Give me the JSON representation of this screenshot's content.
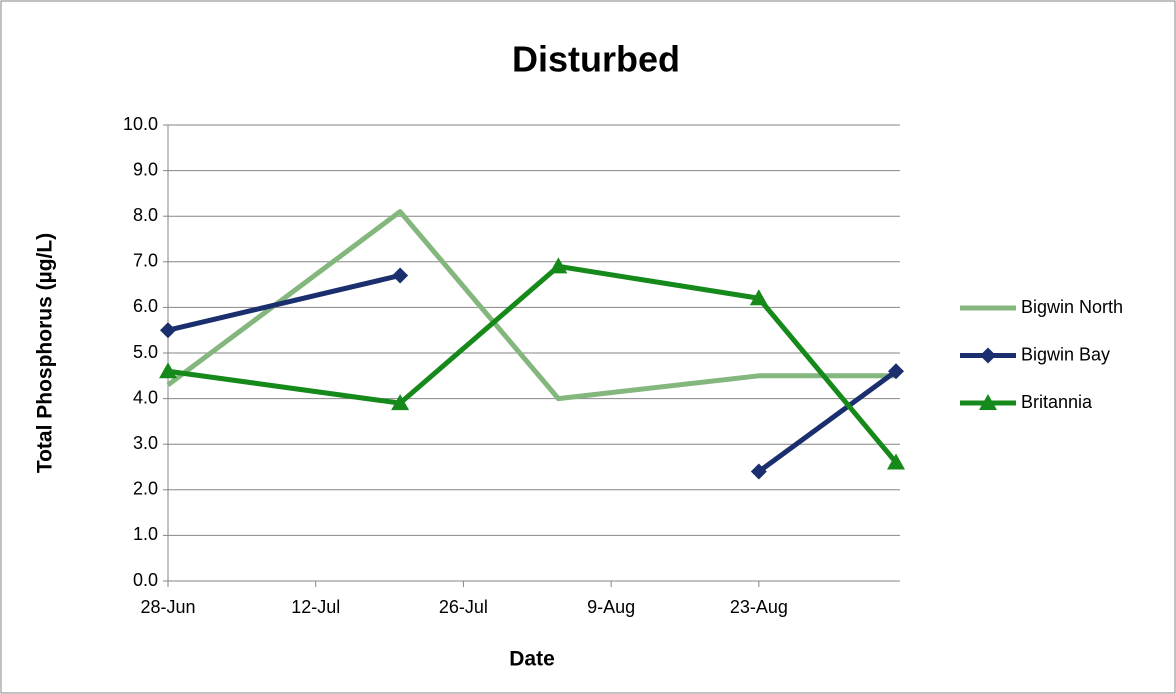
{
  "chart_data": {
    "type": "line",
    "title": "Disturbed",
    "x_label": "Date",
    "y_label": "Total Phosphorus (µg/L)",
    "x": [
      "28-Jun",
      "20-Jul",
      "4-Aug",
      "23-Aug",
      "5-Sep"
    ],
    "xlim": [
      "28-Jun",
      "5-Sep"
    ],
    "xticks": [
      "28-Jun",
      "12-Jul",
      "26-Jul",
      "9-Aug",
      "23-Aug"
    ],
    "ylim": [
      0,
      10
    ],
    "yticks": [
      {
        "value": 0,
        "label": "0.0"
      },
      {
        "value": 1,
        "label": "1.0"
      },
      {
        "value": 2,
        "label": "2.0"
      },
      {
        "value": 3,
        "label": "3.0"
      },
      {
        "value": 4,
        "label": "4.0"
      },
      {
        "value": 5,
        "label": "5.0"
      },
      {
        "value": 6,
        "label": "6.0"
      },
      {
        "value": 7,
        "label": "7.0"
      },
      {
        "value": 8,
        "label": "8.0"
      },
      {
        "value": 9,
        "label": "9.0"
      },
      {
        "value": 10,
        "label": "10.0"
      }
    ],
    "grid": true,
    "legend": "right",
    "series": [
      {
        "name": "Bigwin North",
        "color": "#84b77d",
        "marker": "none",
        "values": [
          4.3,
          8.1,
          4.0,
          4.5,
          4.5
        ]
      },
      {
        "name": "Bigwin Bay",
        "color": "#1b2f6e",
        "marker": "diamond",
        "values": [
          5.5,
          6.7,
          null,
          2.4,
          4.6
        ]
      },
      {
        "name": "Britannia",
        "color": "#15891a",
        "marker": "triangle",
        "values": [
          4.6,
          3.9,
          6.9,
          6.2,
          2.6
        ]
      }
    ]
  }
}
